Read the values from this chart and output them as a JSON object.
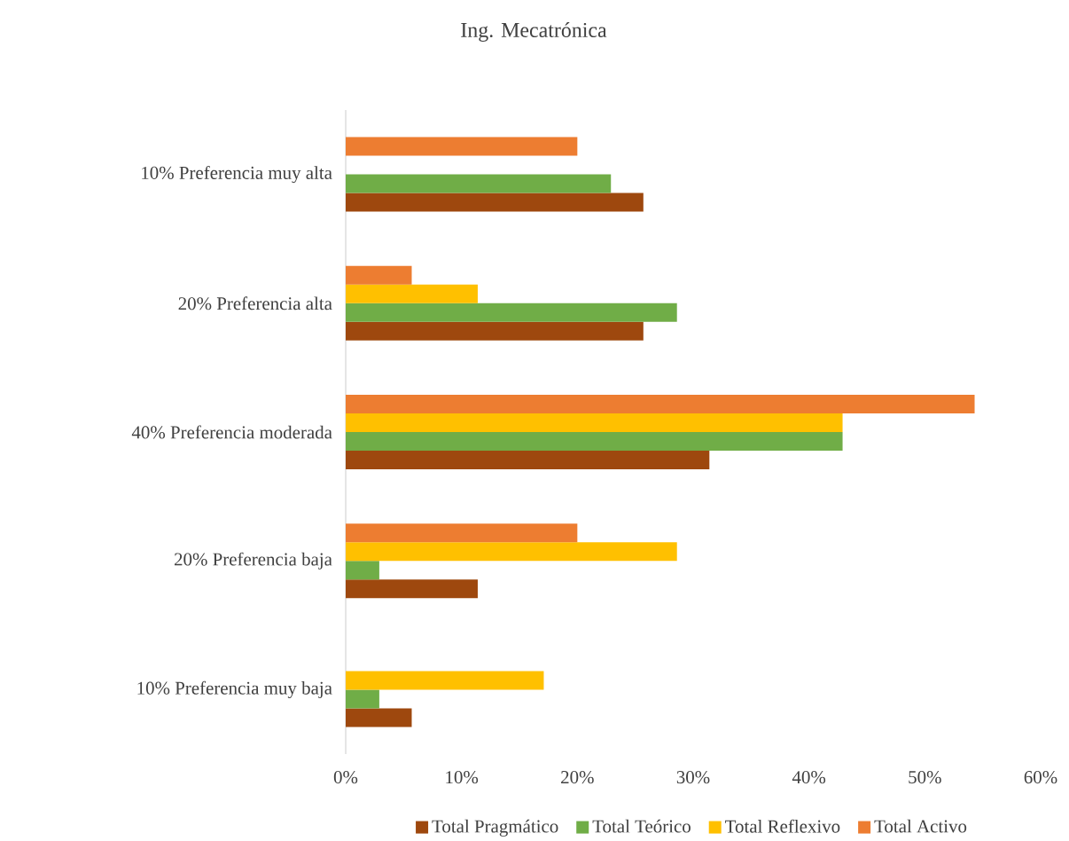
{
  "chart_data": {
    "type": "bar",
    "orientation": "horizontal",
    "title": "Ing. Mecatrónica",
    "categories": [
      "10% Preferencia muy alta",
      "20% Preferencia alta",
      "40% Preferencia moderada",
      "20% Preferencia baja",
      "10% Preferencia muy baja"
    ],
    "series": [
      {
        "name": "Total Pragmático",
        "color": "#9e480e",
        "values": [
          25.7,
          25.7,
          31.4,
          11.4,
          5.7
        ]
      },
      {
        "name": "Total Teórico",
        "color": "#70ad47",
        "values": [
          22.9,
          28.6,
          42.9,
          2.9,
          2.9
        ]
      },
      {
        "name": "Total Reflexivo",
        "color": "#ffc000",
        "values": [
          0,
          11.4,
          42.9,
          28.6,
          17.1
        ]
      },
      {
        "name": "Total Activo",
        "color": "#ed7d31",
        "values": [
          20,
          5.7,
          54.3,
          20,
          0
        ]
      }
    ],
    "xlim": [
      0,
      60
    ],
    "xticks": [
      {
        "value": 0,
        "label": "0%"
      },
      {
        "value": 10,
        "label": "10%"
      },
      {
        "value": 20,
        "label": "20%"
      },
      {
        "value": 30,
        "label": "30%"
      },
      {
        "value": 40,
        "label": "40%"
      },
      {
        "value": 50,
        "label": "50%"
      },
      {
        "value": 60,
        "label": "60%"
      }
    ],
    "grid": false,
    "legend": "bottom"
  }
}
